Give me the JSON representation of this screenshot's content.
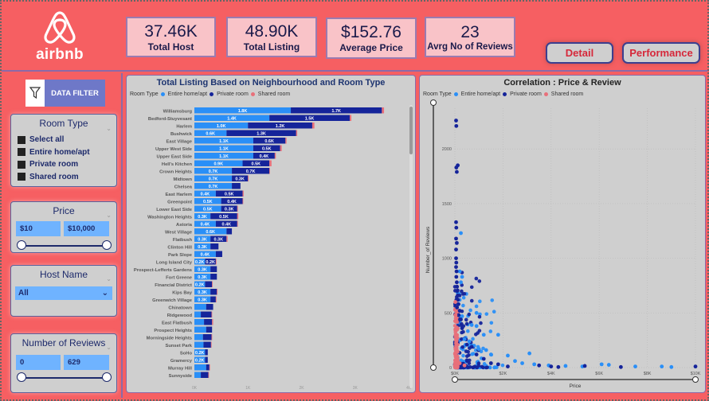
{
  "logo": {
    "text": "airbnb"
  },
  "kpis": [
    {
      "value": "37.46K",
      "label": "Total Host"
    },
    {
      "value": "48.90K",
      "label": "Total Listing"
    },
    {
      "value": "$152.76",
      "label": "Average Price"
    },
    {
      "value": "23",
      "label": "Avrg No of Reviews"
    }
  ],
  "nav": {
    "detail_label": "Detail",
    "performance_label": "Performance"
  },
  "filter_header": {
    "label": "DATA FILTER",
    "icon": "funnel-icon"
  },
  "slicers": {
    "room_type": {
      "title": "Room Type",
      "options": [
        "Select all",
        "Entire home/apt",
        "Private room",
        "Shared room"
      ]
    },
    "price": {
      "title": "Price",
      "min": "$10",
      "max": "$10,000"
    },
    "host_name": {
      "title": "Host Name",
      "selected": "All"
    },
    "reviews": {
      "title": "Number of Reviews",
      "min": "0",
      "max": "629"
    }
  },
  "colors": {
    "entire": "#2a8ff7",
    "private": "#15249a",
    "shared": "#e8707a",
    "accent": "#f65f62"
  },
  "chart_data": [
    {
      "type": "bar",
      "orientation": "horizontal-stacked",
      "title": "Total Listing Based on Neighbourhood and Room Type",
      "legend_title": "Room Type",
      "legend": [
        "Entire home/apt",
        "Private room",
        "Shared room"
      ],
      "categories": [
        "Williamsburg",
        "Bedford-Stuyvesant",
        "Harlem",
        "Bushwick",
        "East Village",
        "Upper West Side",
        "Upper East Side",
        "Hell's Kitchen",
        "Crown Heights",
        "Midtown",
        "Chelsea",
        "East Harlem",
        "Greenpoint",
        "Lower East Side",
        "Washington Heights",
        "Astoria",
        "West Village",
        "Flatbush",
        "Clinton Hill",
        "Park Slope",
        "Long Island City",
        "Prospect-Lefferts Gardens",
        "Fort Greene",
        "Financial District",
        "Kips Bay",
        "Greenwich Village",
        "Chinatown",
        "Ridgewood",
        "East Flatbush",
        "Prospect Heights",
        "Morningside Heights",
        "Sunset Park",
        "SoHo",
        "Gramercy",
        "Murray Hill",
        "Sunnyside"
      ],
      "series": [
        {
          "name": "Entire home/apt",
          "values": [
            1.8,
            1.4,
            1.0,
            0.6,
            1.1,
            1.1,
            1.1,
            0.9,
            0.7,
            0.7,
            0.7,
            0.4,
            0.5,
            0.5,
            0.3,
            0.4,
            0.6,
            0.3,
            0.3,
            0.4,
            0.2,
            0.3,
            0.3,
            0.2,
            0.3,
            0.3,
            0.22,
            0.12,
            0.18,
            0.22,
            0.16,
            0.17,
            0.2,
            0.2,
            0.22,
            0.12
          ],
          "labels": [
            "1.8K",
            "1.4K",
            "1.0K",
            "0.6K",
            "1.1K",
            "1.1K",
            "1.1K",
            "0.9K",
            "0.7K",
            "0.7K",
            "0.7K",
            "0.4K",
            "0.5K",
            "0.5K",
            "0.3K",
            "0.4K",
            "0.6K",
            "0.3K",
            "0.3K",
            "0.4K",
            "0.2K",
            "0.3K",
            "0.3K",
            "0.2K",
            "0.3K",
            "0.3K",
            "",
            "",
            "",
            "",
            "",
            "",
            "0.2K",
            "0.2K",
            "",
            ""
          ]
        },
        {
          "name": "Private room",
          "values": [
            1.7,
            1.5,
            1.2,
            1.3,
            0.6,
            0.5,
            0.4,
            0.5,
            0.7,
            0.3,
            0.16,
            0.5,
            0.4,
            0.3,
            0.5,
            0.4,
            0.1,
            0.3,
            0.15,
            0.12,
            0.2,
            0.12,
            0.12,
            0.13,
            0.12,
            0.1,
            0.13,
            0.2,
            0.15,
            0.11,
            0.16,
            0.14,
            0.05,
            0.05,
            0.06,
            0.14
          ],
          "labels": [
            "1.7K",
            "1.5K",
            "1.2K",
            "1.3K",
            "0.6K",
            "0.5K",
            "0.4K",
            "0.5K",
            "0.7K",
            "0.3K",
            "",
            "0.5K",
            "0.4K",
            "0.3K",
            "0.5K",
            "0.4K",
            "",
            "0.3K",
            "",
            "",
            "0.2K",
            "",
            "",
            "",
            "",
            "",
            "",
            "",
            "",
            "",
            "",
            "",
            "",
            "",
            "",
            ""
          ]
        },
        {
          "name": "Shared room",
          "values": [
            0.04,
            0.03,
            0.04,
            0.02,
            0.02,
            0.03,
            0.02,
            0.04,
            0.01,
            0.01,
            0.0,
            0.02,
            0.01,
            0.01,
            0.02,
            0.01,
            0.0,
            0.02,
            0.0,
            0.0,
            0.01,
            0.0,
            0.0,
            0.01,
            0.01,
            0.01,
            0.0,
            0.01,
            0.02,
            0.0,
            0.01,
            0.01,
            0.0,
            0.0,
            0.01,
            0.01
          ],
          "labels": []
        }
      ],
      "xlim": [
        0,
        4
      ],
      "xticks": [
        "0K",
        "1K",
        "2K",
        "3K",
        "4K"
      ]
    },
    {
      "type": "scatter",
      "title": "Correlation : Price & Review",
      "legend_title": "Room Type",
      "legend": [
        "Entire home/apt",
        "Private room",
        "Shared room"
      ],
      "xlabel": "Price",
      "ylabel": "Number_of Reviews",
      "xlim": [
        0,
        10000
      ],
      "ylim": [
        0,
        2300
      ],
      "xticks": [
        "$0K",
        "$2K",
        "$4K",
        "$6K",
        "$8K",
        "$10K"
      ],
      "yticks": [
        "0",
        "500",
        "1000",
        "1500",
        "2000"
      ],
      "series": [
        {
          "name": "Private room",
          "points": [
            [
              50,
              2260
            ],
            [
              60,
              2210
            ],
            [
              60,
              1830
            ],
            [
              120,
              1850
            ],
            [
              80,
              1790
            ],
            [
              50,
              1330
            ],
            [
              60,
              1280
            ],
            [
              50,
              1180
            ],
            [
              80,
              1140
            ],
            [
              50,
              1080
            ],
            [
              50,
              1000
            ],
            [
              60,
              960
            ],
            [
              50,
              920
            ],
            [
              70,
              880
            ],
            [
              60,
              830
            ],
            [
              80,
              780
            ],
            [
              90,
              740
            ],
            [
              100,
              700
            ],
            [
              120,
              660
            ],
            [
              130,
              620
            ],
            [
              150,
              580
            ],
            [
              90,
              550
            ],
            [
              200,
              520
            ],
            [
              160,
              480
            ],
            [
              250,
              440
            ],
            [
              300,
              360
            ],
            [
              500,
              210
            ],
            [
              700,
              190
            ],
            [
              900,
              120
            ],
            [
              1200,
              80
            ],
            [
              1500,
              40
            ],
            [
              1800,
              30
            ],
            [
              2200,
              10
            ],
            [
              3500,
              20
            ],
            [
              4000,
              10
            ],
            [
              4300,
              5
            ],
            [
              5400,
              15
            ],
            [
              6900,
              5
            ],
            [
              10000,
              10
            ]
          ]
        },
        {
          "name": "Entire home/apt",
          "points": [
            [
              250,
              1230
            ],
            [
              200,
              880
            ],
            [
              300,
              830
            ],
            [
              250,
              780
            ],
            [
              900,
              500
            ],
            [
              300,
              470
            ],
            [
              700,
              390
            ],
            [
              900,
              380
            ],
            [
              1200,
              300
            ],
            [
              1800,
              300
            ],
            [
              400,
              260
            ],
            [
              600,
              240
            ],
            [
              800,
              200
            ],
            [
              1000,
              170
            ],
            [
              1300,
              160
            ],
            [
              1500,
              120
            ],
            [
              2200,
              110
            ],
            [
              3100,
              130
            ],
            [
              2500,
              60
            ],
            [
              2800,
              40
            ],
            [
              3300,
              30
            ],
            [
              3900,
              20
            ],
            [
              4600,
              15
            ],
            [
              5300,
              10
            ],
            [
              6100,
              30
            ],
            [
              6400,
              25
            ],
            [
              7500,
              10
            ],
            [
              8600,
              10
            ],
            [
              9000,
              5
            ]
          ]
        },
        {
          "name": "Shared room",
          "points": [
            [
              20,
              600
            ],
            [
              30,
              480
            ],
            [
              40,
              420
            ],
            [
              20,
              350
            ],
            [
              30,
              300
            ],
            [
              40,
              250
            ],
            [
              50,
              200
            ],
            [
              60,
              150
            ],
            [
              30,
              100
            ],
            [
              80,
              60
            ],
            [
              200,
              40
            ],
            [
              400,
              20
            ]
          ]
        }
      ]
    }
  ]
}
